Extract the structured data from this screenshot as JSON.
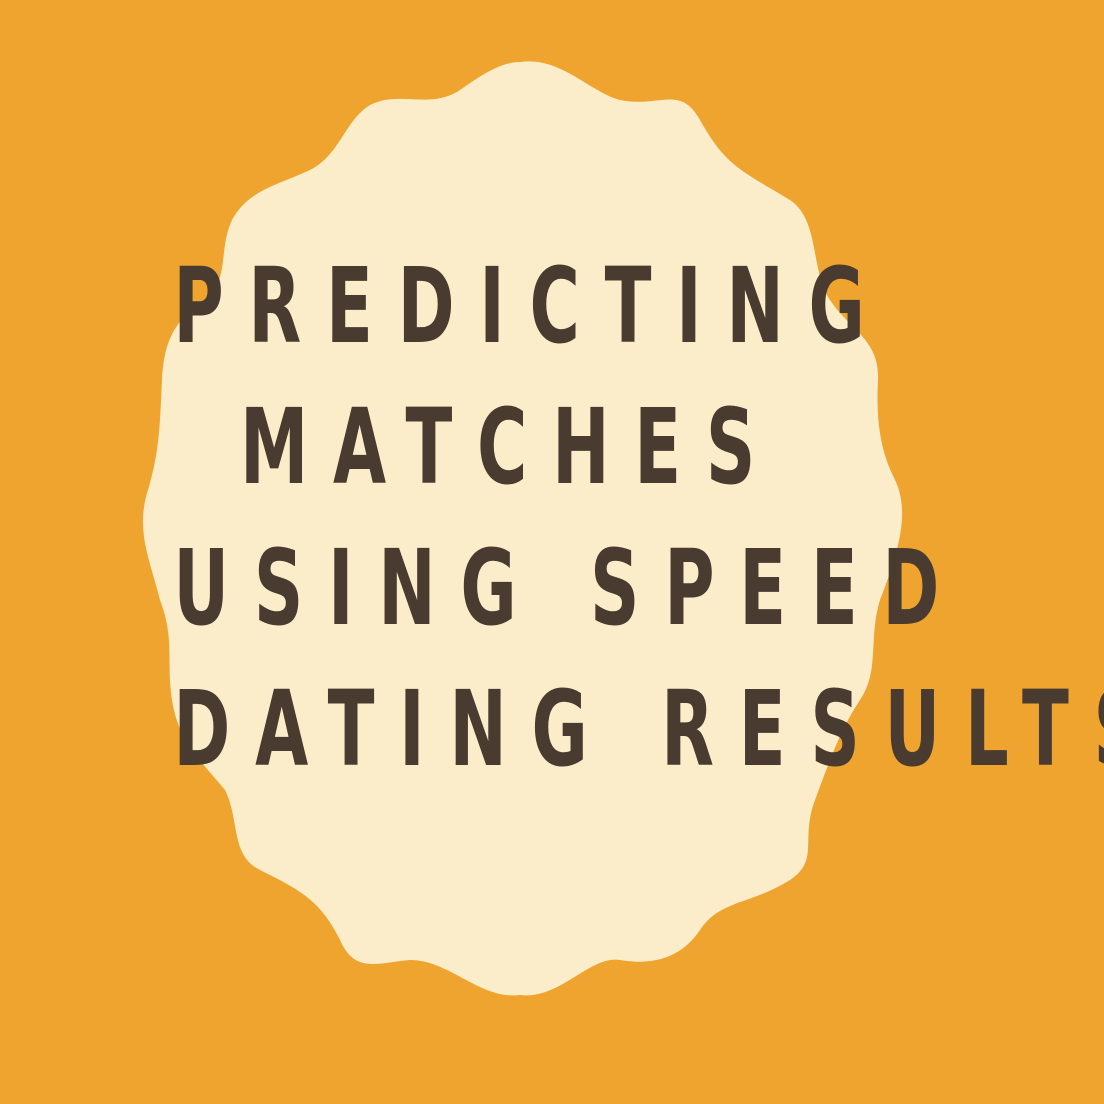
{
  "colors": {
    "background": "#EEA42E",
    "badge_fill": "#FBEDC9",
    "text": "#4A3B31"
  },
  "title": {
    "lines": [
      "PREDICTING",
      "MATCHES",
      "USING SPEED",
      "DATING RESULTS"
    ]
  }
}
